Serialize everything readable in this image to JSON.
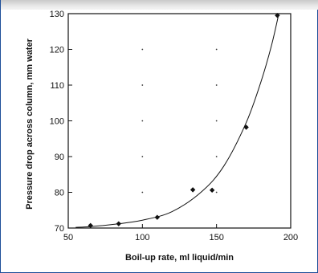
{
  "chart_data": {
    "type": "scatter",
    "title": "",
    "xlabel": "Boil-up rate, ml liquid/min",
    "ylabel": "Pressure drop across column, mm water",
    "xlim": [
      50,
      200
    ],
    "ylim": [
      70,
      130
    ],
    "x_ticks": [
      50,
      100,
      150,
      200
    ],
    "y_ticks": [
      70,
      80,
      90,
      100,
      110,
      120,
      130
    ],
    "grid": "dotted",
    "legend": "none",
    "series": [
      {
        "type": "scatter",
        "marker": "filled-diamond",
        "x": [
          65,
          84,
          110,
          134,
          147,
          170,
          191
        ],
        "y": [
          70.7,
          71.2,
          73.0,
          80.7,
          80.6,
          98.2,
          129.5
        ]
      }
    ],
    "fit_curve": {
      "type": "line",
      "description": "smooth exponential fit",
      "x": [
        55,
        65,
        80,
        100,
        120,
        140,
        155,
        170,
        180,
        187,
        192
      ],
      "y": [
        70.2,
        70.4,
        71.0,
        72.2,
        74.6,
        80.2,
        87.4,
        99.5,
        111.0,
        121.0,
        130.0
      ]
    },
    "colors": {
      "frame": "#1e4f9a",
      "ink": "#111111"
    }
  }
}
